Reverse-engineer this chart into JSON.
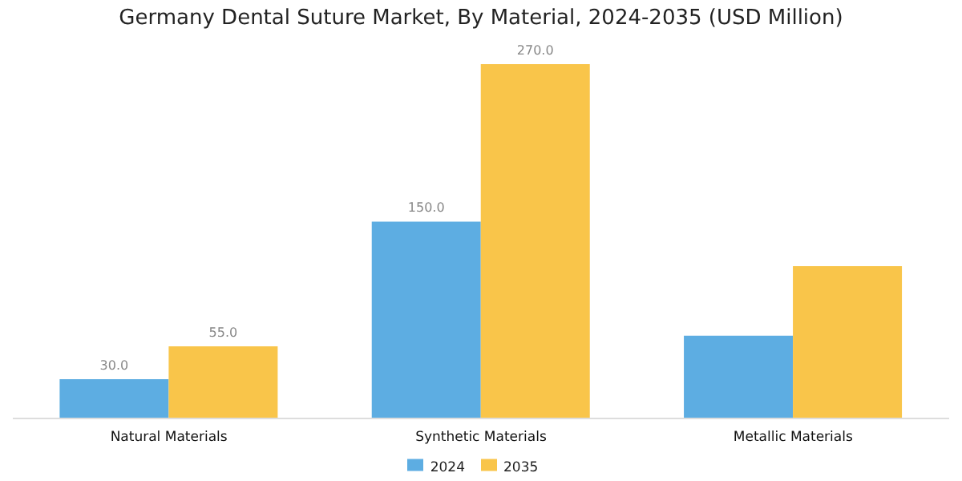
{
  "chart_data": {
    "type": "bar",
    "title": "Germany Dental Suture Market, By Material, 2024-2035 (USD Million)",
    "categories": [
      "Natural Materials",
      "Synthetic Materials",
      "Metallic Materials"
    ],
    "legend": "bottom",
    "series": [
      {
        "name": "2024",
        "color": "#5dade2",
        "values": [
          30,
          150,
          63
        ],
        "value_labels": [
          "30.0",
          "150.0",
          null
        ]
      },
      {
        "name": "2035",
        "color": "#f9c54a",
        "values": [
          55,
          270,
          116
        ],
        "value_labels": [
          "55.0",
          "270.0",
          null
        ]
      }
    ]
  }
}
